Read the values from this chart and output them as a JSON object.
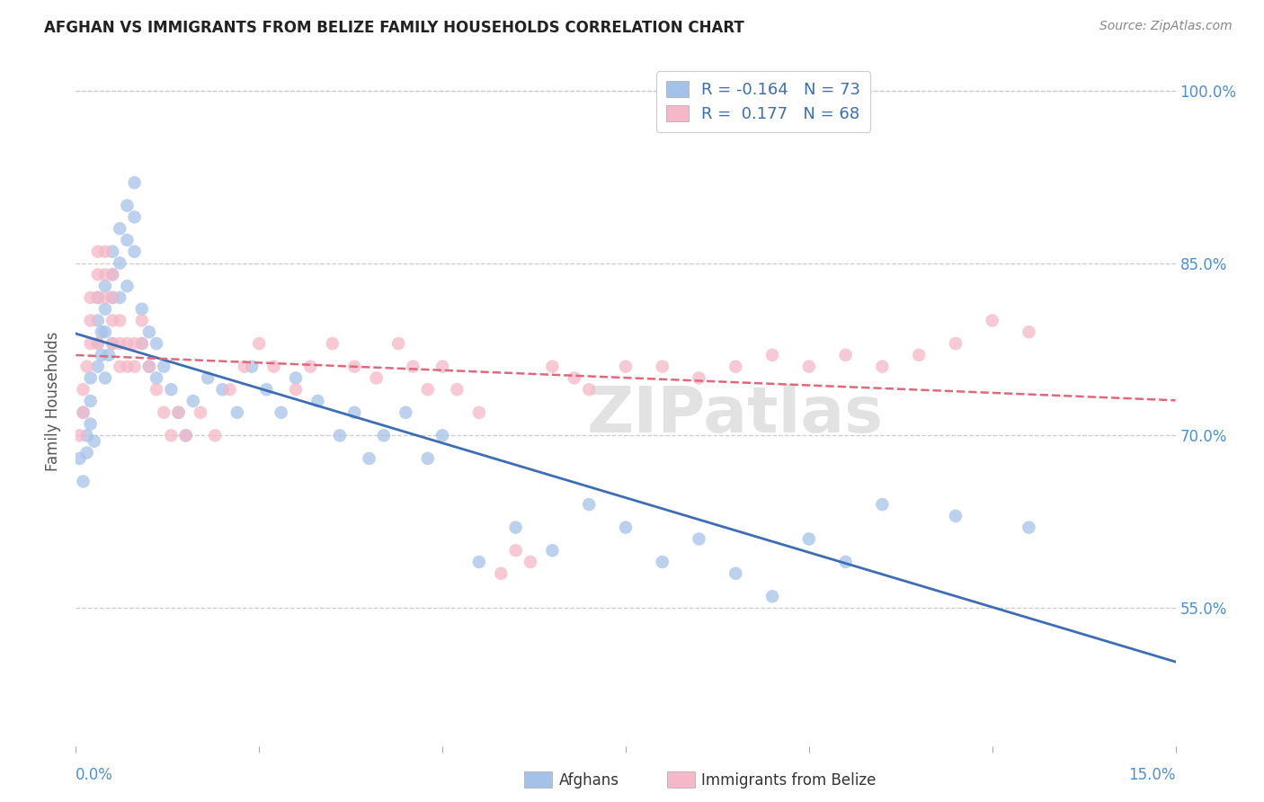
{
  "title": "AFGHAN VS IMMIGRANTS FROM BELIZE FAMILY HOUSEHOLDS CORRELATION CHART",
  "source": "Source: ZipAtlas.com",
  "ylabel": "Family Households",
  "blue_color": "#a4c2e8",
  "pink_color": "#f4b8c8",
  "blue_line_color": "#3d6eb5",
  "pink_line_color": "#e06878",
  "watermark": "ZIPatlas",
  "xlim": [
    0.0,
    0.15
  ],
  "ylim": [
    0.43,
    1.03
  ],
  "ytick_values": [
    0.55,
    0.7,
    0.85,
    1.0
  ],
  "xtick_positions": [
    0.0,
    0.025,
    0.05,
    0.075,
    0.1,
    0.125,
    0.15
  ],
  "legend_label1": "Afghans",
  "legend_label2": "Immigrants from Belize",
  "legend_R1": "R = -0.164",
  "legend_N1": "N = 73",
  "legend_R2": "R =  0.177",
  "legend_N2": "N = 68",
  "blue_scatter_x": [
    0.0005,
    0.001,
    0.001,
    0.0015,
    0.0015,
    0.002,
    0.002,
    0.002,
    0.0025,
    0.003,
    0.003,
    0.003,
    0.003,
    0.0035,
    0.0035,
    0.004,
    0.004,
    0.004,
    0.004,
    0.0045,
    0.005,
    0.005,
    0.005,
    0.005,
    0.006,
    0.006,
    0.006,
    0.007,
    0.007,
    0.007,
    0.008,
    0.008,
    0.008,
    0.009,
    0.009,
    0.01,
    0.01,
    0.011,
    0.011,
    0.012,
    0.013,
    0.014,
    0.015,
    0.016,
    0.018,
    0.02,
    0.022,
    0.024,
    0.026,
    0.028,
    0.03,
    0.033,
    0.036,
    0.038,
    0.04,
    0.042,
    0.045,
    0.048,
    0.05,
    0.055,
    0.06,
    0.065,
    0.07,
    0.075,
    0.08,
    0.085,
    0.09,
    0.095,
    0.1,
    0.105,
    0.11,
    0.12,
    0.13
  ],
  "blue_scatter_y": [
    0.68,
    0.66,
    0.72,
    0.7,
    0.685,
    0.71,
    0.73,
    0.75,
    0.695,
    0.76,
    0.78,
    0.8,
    0.82,
    0.77,
    0.79,
    0.81,
    0.83,
    0.79,
    0.75,
    0.77,
    0.84,
    0.86,
    0.82,
    0.78,
    0.88,
    0.85,
    0.82,
    0.9,
    0.87,
    0.83,
    0.92,
    0.89,
    0.86,
    0.81,
    0.78,
    0.76,
    0.79,
    0.75,
    0.78,
    0.76,
    0.74,
    0.72,
    0.7,
    0.73,
    0.75,
    0.74,
    0.72,
    0.76,
    0.74,
    0.72,
    0.75,
    0.73,
    0.7,
    0.72,
    0.68,
    0.7,
    0.72,
    0.68,
    0.7,
    0.59,
    0.62,
    0.6,
    0.64,
    0.62,
    0.59,
    0.61,
    0.58,
    0.56,
    0.61,
    0.59,
    0.64,
    0.63,
    0.62
  ],
  "pink_scatter_x": [
    0.0005,
    0.001,
    0.001,
    0.0015,
    0.002,
    0.002,
    0.002,
    0.003,
    0.003,
    0.003,
    0.003,
    0.004,
    0.004,
    0.004,
    0.005,
    0.005,
    0.005,
    0.005,
    0.006,
    0.006,
    0.006,
    0.007,
    0.007,
    0.008,
    0.008,
    0.009,
    0.009,
    0.01,
    0.011,
    0.012,
    0.013,
    0.014,
    0.015,
    0.017,
    0.019,
    0.021,
    0.023,
    0.025,
    0.027,
    0.03,
    0.032,
    0.035,
    0.038,
    0.041,
    0.044,
    0.046,
    0.048,
    0.05,
    0.052,
    0.055,
    0.058,
    0.06,
    0.062,
    0.065,
    0.068,
    0.07,
    0.075,
    0.08,
    0.085,
    0.09,
    0.095,
    0.1,
    0.105,
    0.11,
    0.115,
    0.12,
    0.125,
    0.13
  ],
  "pink_scatter_y": [
    0.7,
    0.72,
    0.74,
    0.76,
    0.8,
    0.82,
    0.78,
    0.84,
    0.86,
    0.82,
    0.78,
    0.86,
    0.84,
    0.82,
    0.8,
    0.82,
    0.84,
    0.78,
    0.76,
    0.78,
    0.8,
    0.78,
    0.76,
    0.78,
    0.76,
    0.8,
    0.78,
    0.76,
    0.74,
    0.72,
    0.7,
    0.72,
    0.7,
    0.72,
    0.7,
    0.74,
    0.76,
    0.78,
    0.76,
    0.74,
    0.76,
    0.78,
    0.76,
    0.75,
    0.78,
    0.76,
    0.74,
    0.76,
    0.74,
    0.72,
    0.58,
    0.6,
    0.59,
    0.76,
    0.75,
    0.74,
    0.76,
    0.76,
    0.75,
    0.76,
    0.77,
    0.76,
    0.77,
    0.76,
    0.77,
    0.78,
    0.8,
    0.79
  ]
}
